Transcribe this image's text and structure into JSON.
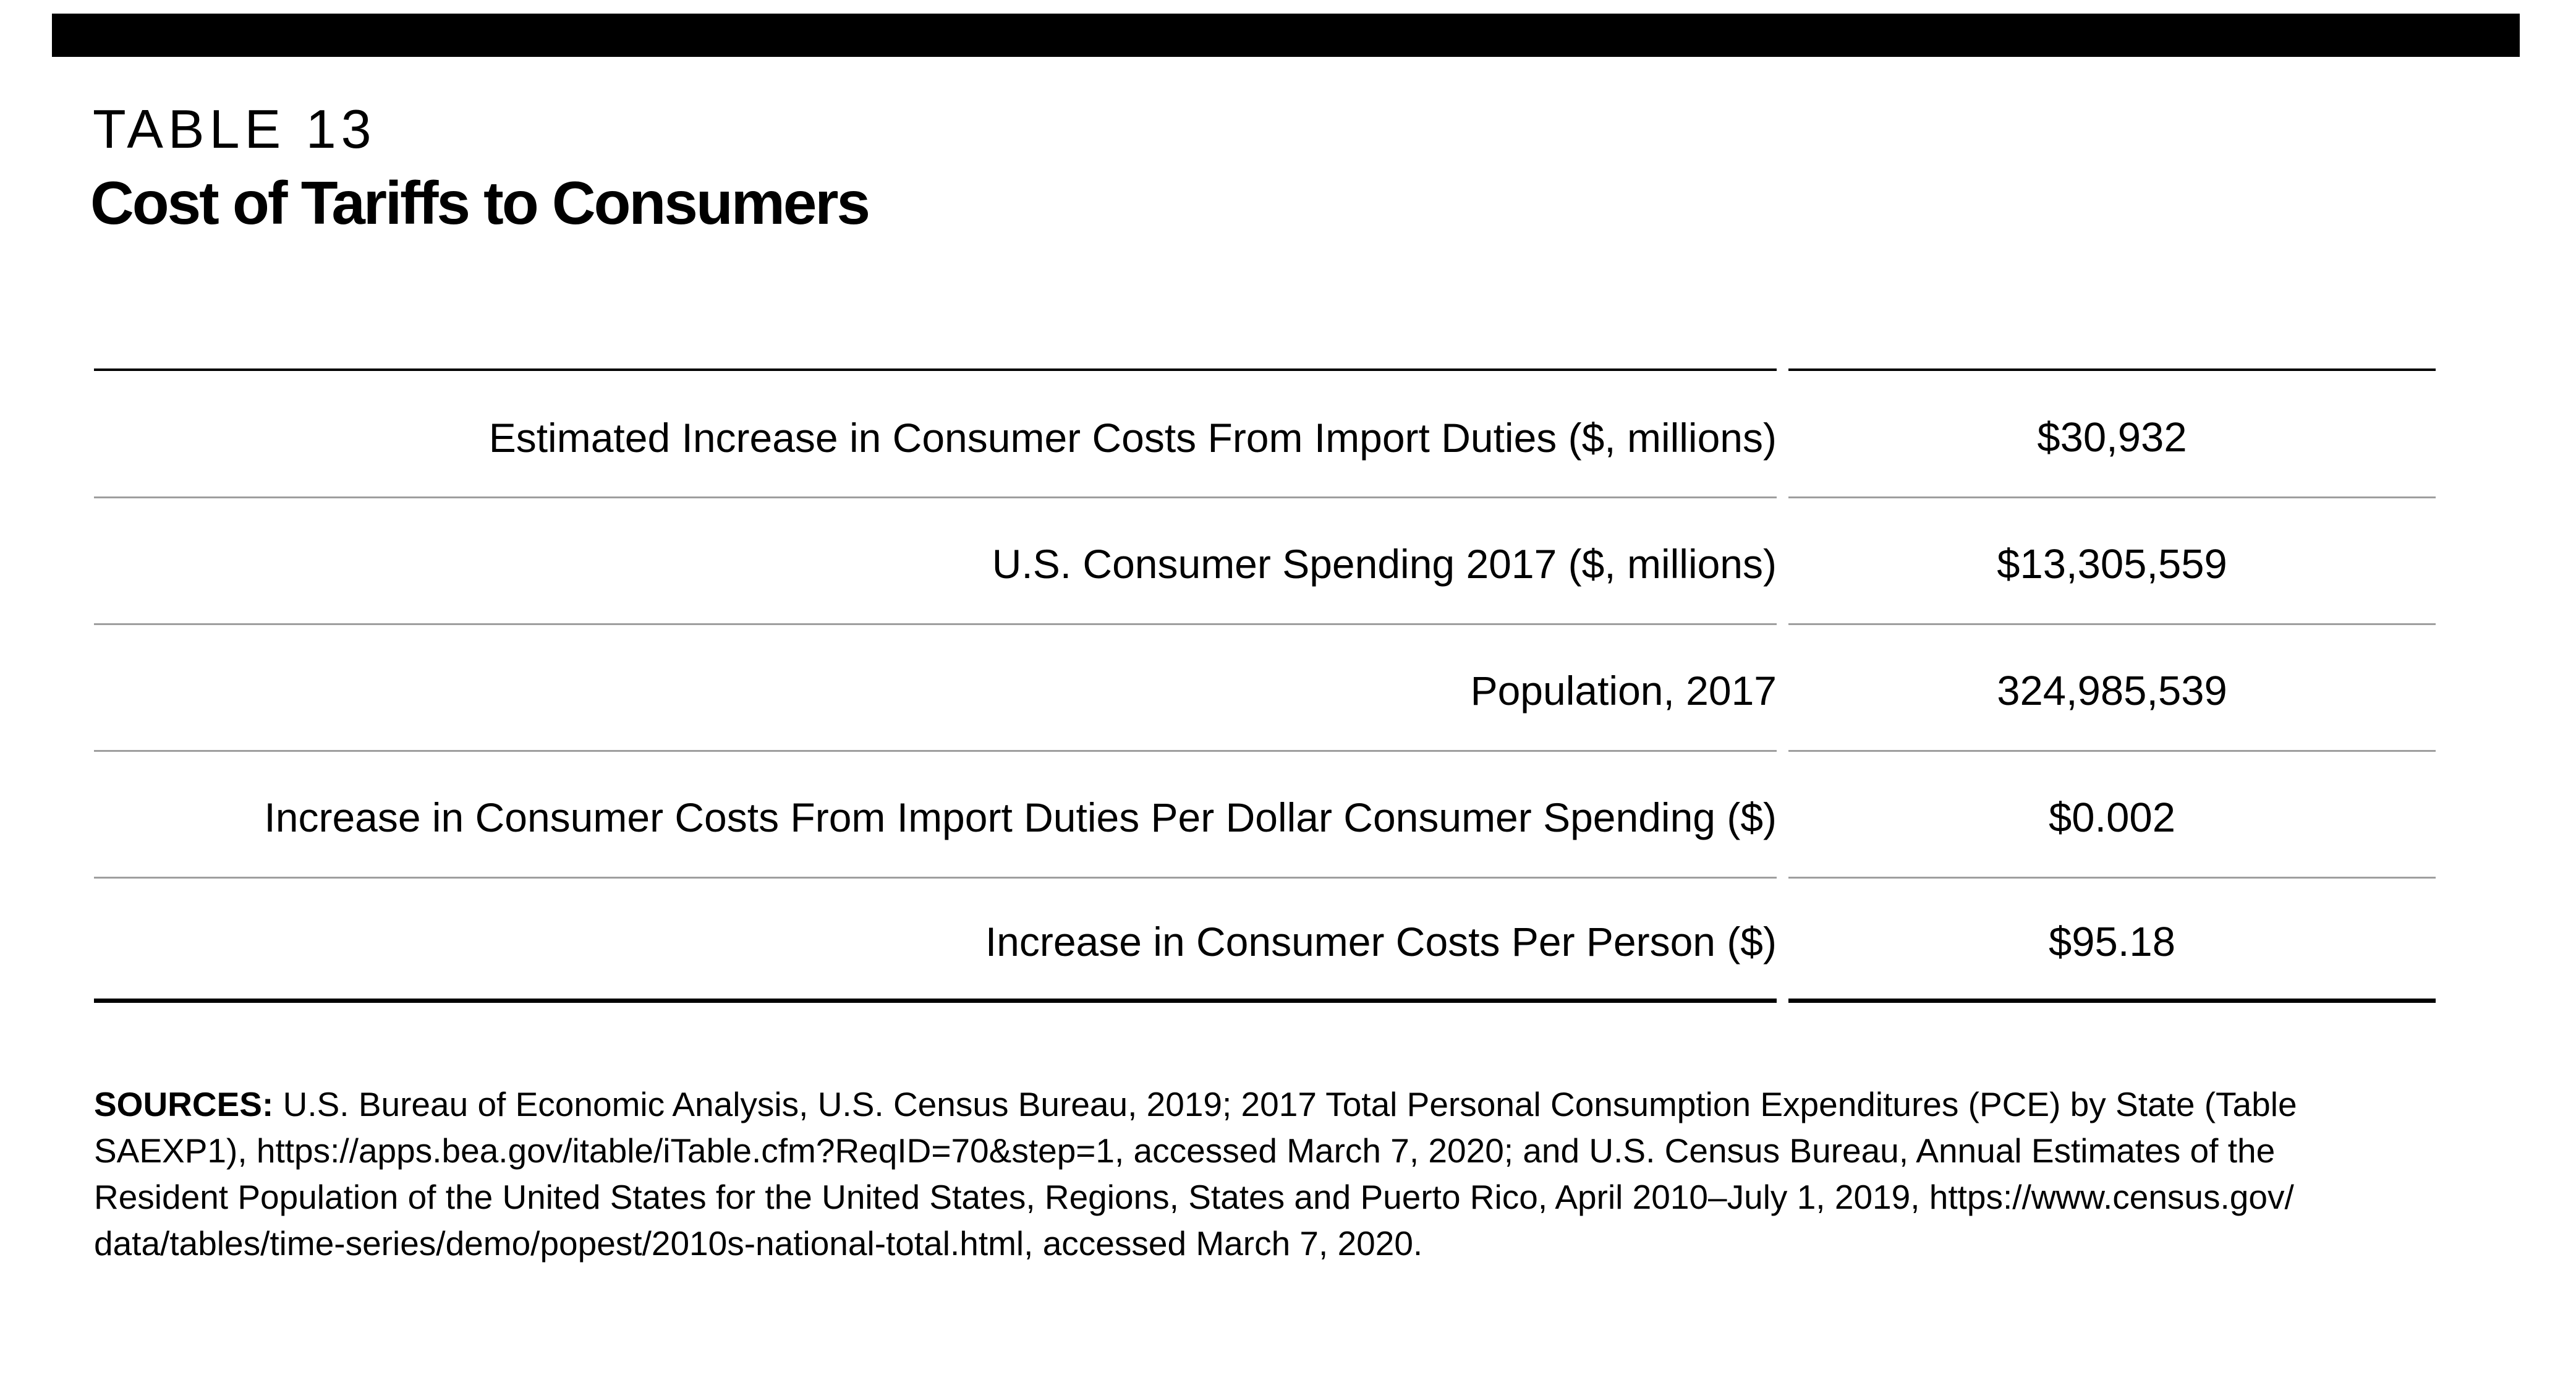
{
  "page": {
    "table_label": "TABLE 13",
    "title": "Cost of Tariffs to Consumers"
  },
  "table": {
    "rows": [
      {
        "label": "Estimated Increase in Consumer Costs From Import Duties ($, millions)",
        "value": "$30,932"
      },
      {
        "label": "U.S. Consumer Spending 2017 ($, millions)",
        "value": "$13,305,559"
      },
      {
        "label": "Population, 2017",
        "value": "324,985,539"
      },
      {
        "label": "Increase in Consumer Costs From Import Duties Per Dollar Consumer Spending ($)",
        "value": "$0.002"
      },
      {
        "label": "Increase in Consumer Costs Per Person ($)",
        "value": "$95.18"
      }
    ]
  },
  "sources": {
    "label": "SOURCES:",
    "lines": [
      " U.S. Bureau of Economic Analysis, U.S. Census Bureau, 2019; 2017 Total Personal Consumption Expenditures (PCE) by State (Table",
      "SAEXP1), https://apps.bea.gov/itable/iTable.cfm?ReqID=70&step=1, accessed March 7, 2020; and U.S. Census Bureau, Annual Estimates of the",
      "Resident Population of the United States for the United States, Regions, States and Puerto Rico, April 2010–July 1, 2019, https://www.census.gov/",
      "data/tables/time-series/demo/popest/2010s-national-total.html, accessed March 7, 2020."
    ]
  },
  "colors": {
    "top_bar": "#000000",
    "text": "#000000",
    "rule_dark": "#000000",
    "rule_light": "#9e9e9e"
  }
}
